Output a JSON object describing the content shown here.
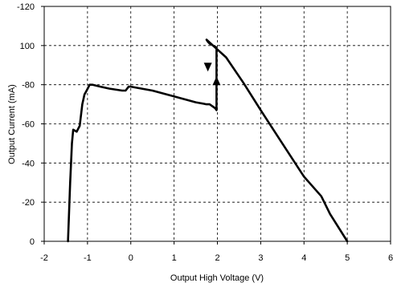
{
  "chart_data": {
    "type": "line",
    "title": "",
    "xlabel": "Output High Voltage (V)",
    "ylabel": "Output Current (mA)",
    "xlim": [
      -2,
      6
    ],
    "ylim": [
      0,
      120
    ],
    "x_ticks": [
      -2,
      -1,
      0,
      1,
      2,
      3,
      4,
      5,
      6
    ],
    "x_tick_labels": [
      "-2",
      "-1",
      "0",
      "1",
      "2",
      "3",
      "4",
      "5",
      "6"
    ],
    "y_ticks": [
      0,
      20,
      40,
      60,
      80,
      100,
      120
    ],
    "y_tick_labels": [
      "0",
      "-20",
      "-40",
      "-60",
      "-80",
      "100",
      "-120"
    ],
    "grid": true,
    "grid_style": "dashed",
    "legend": "none",
    "colors": {
      "line": "#000000",
      "grid": "#000000",
      "background": "#ffffff"
    },
    "series": [
      {
        "x": [
          -1.45,
          -1.4,
          -1.36,
          -1.33,
          -1.25,
          -1.18,
          -1.12,
          -1.07,
          -1.02,
          -0.95,
          -0.88,
          -0.7,
          -0.5,
          -0.2,
          -0.12,
          -0.05,
          0.0,
          0.5,
          1.0,
          1.5,
          1.75,
          1.78,
          1.82,
          1.95,
          1.98,
          1.98,
          1.82,
          1.78,
          1.75,
          1.95,
          2.2,
          2.6,
          3.0,
          3.5,
          4.0,
          4.4,
          4.6,
          5.0
        ],
        "values": [
          0,
          30,
          50,
          57,
          56,
          59,
          70,
          75,
          77,
          80,
          80,
          79,
          78,
          77,
          77,
          79,
          79,
          77,
          74,
          71,
          70,
          70,
          70,
          68,
          67,
          99,
          101,
          102,
          103,
          99,
          94,
          81,
          67,
          50,
          33,
          23,
          14,
          0
        ]
      }
    ],
    "annotations": [
      {
        "type": "arrow",
        "direction": "down",
        "x": 1.78,
        "y": 89
      },
      {
        "type": "arrow",
        "direction": "up",
        "x": 1.98,
        "y": 82
      }
    ]
  }
}
